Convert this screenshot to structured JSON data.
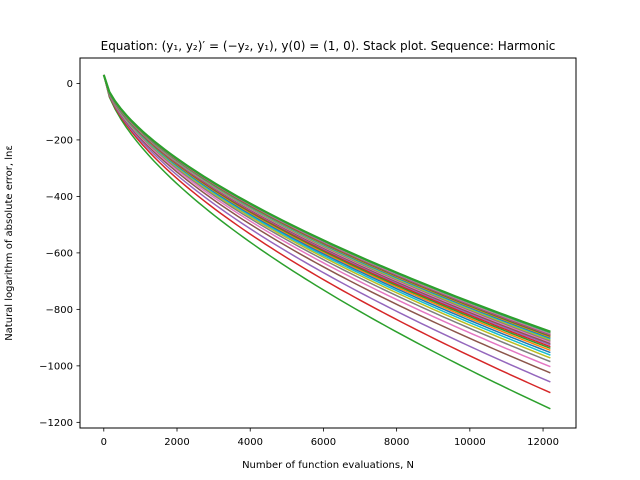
{
  "chart_data": {
    "type": "line",
    "title": "Equation: (y₁, y₂)′ = (−y₂, y₁), y(0) = (1, 0). Stack plot. Sequence: Harmonic",
    "xlabel": "Number of function evaluations, N",
    "ylabel": "Natural logarithm of absolute error, lnε",
    "xlim": [
      -650,
      12900
    ],
    "ylim": [
      -1220,
      90
    ],
    "xticks": [
      0,
      2000,
      4000,
      6000,
      8000,
      10000,
      12000
    ],
    "yticks": [
      0,
      -200,
      -400,
      -600,
      -800,
      -1000,
      -1200
    ],
    "xtick_labels": [
      "0",
      "2000",
      "4000",
      "6000",
      "8000",
      "10000",
      "12000"
    ],
    "ytick_labels": [
      "0",
      "−200",
      "−400",
      "−600",
      "−800",
      "−1000",
      "−1200"
    ],
    "grid": false,
    "legend": "none",
    "x_end": 12200,
    "start_point": {
      "x": 0,
      "y": 30
    },
    "series": [
      {
        "color": "#2ca02c",
        "end_value": -1152
      },
      {
        "color": "#d62728",
        "end_value": -1095
      },
      {
        "color": "#9467bd",
        "end_value": -1057
      },
      {
        "color": "#8c564b",
        "end_value": -1025
      },
      {
        "color": "#e377c2",
        "end_value": -1003
      },
      {
        "color": "#7f7f7f",
        "end_value": -985
      },
      {
        "color": "#bcbd22",
        "end_value": -972
      },
      {
        "color": "#17becf",
        "end_value": -962
      },
      {
        "color": "#1f77b4",
        "end_value": -953
      },
      {
        "color": "#ff7f0e",
        "end_value": -945
      },
      {
        "color": "#2ca02c",
        "end_value": -938
      },
      {
        "color": "#d62728",
        "end_value": -932
      },
      {
        "color": "#9467bd",
        "end_value": -926
      },
      {
        "color": "#8c564b",
        "end_value": -921
      },
      {
        "color": "#e377c2",
        "end_value": -916
      },
      {
        "color": "#7f7f7f",
        "end_value": -912
      },
      {
        "color": "#bcbd22",
        "end_value": -908
      },
      {
        "color": "#17becf",
        "end_value": -904
      },
      {
        "color": "#1f77b4",
        "end_value": -901
      },
      {
        "color": "#ff7f0e",
        "end_value": -898
      },
      {
        "color": "#2ca02c",
        "end_value": -895
      },
      {
        "color": "#d62728",
        "end_value": -892
      },
      {
        "color": "#9467bd",
        "end_value": -890
      },
      {
        "color": "#8c564b",
        "end_value": -888
      },
      {
        "color": "#e377c2",
        "end_value": -886
      },
      {
        "color": "#7f7f7f",
        "end_value": -884
      },
      {
        "color": "#bcbd22",
        "end_value": -883
      },
      {
        "color": "#17becf",
        "end_value": -882
      },
      {
        "color": "#1f77b4",
        "end_value": -881
      },
      {
        "color": "#ff7f0e",
        "end_value": -880
      },
      {
        "color": "#2ca02c",
        "end_value": -879
      }
    ]
  }
}
